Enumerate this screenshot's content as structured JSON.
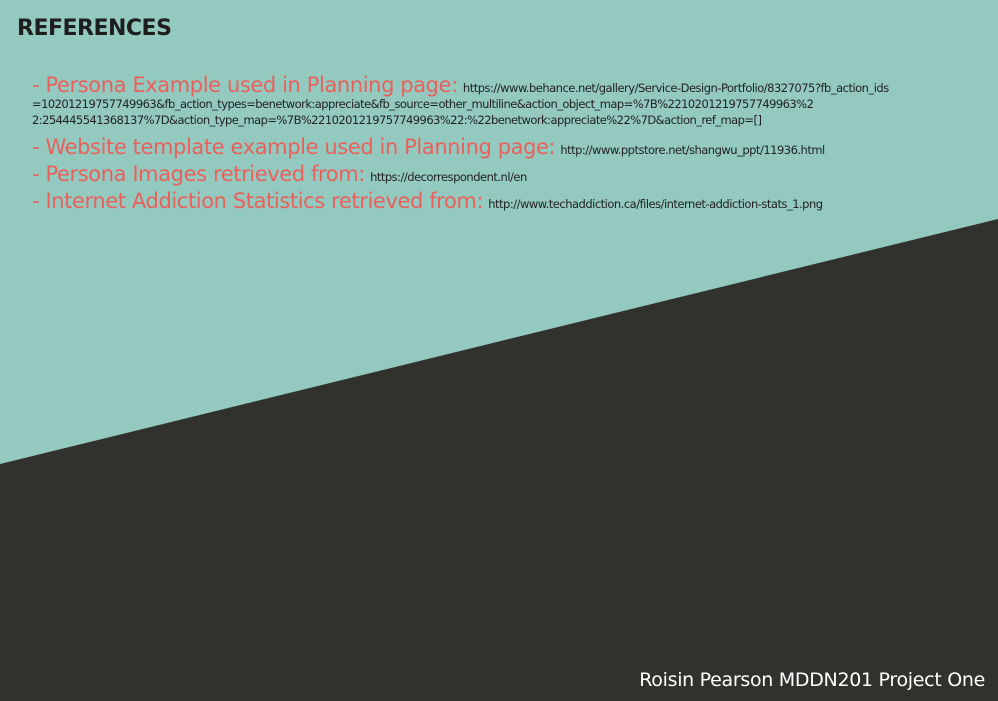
{
  "slide": {
    "title": "REFERENCES",
    "references": [
      {
        "label": "- Persona Example used in Planning page:",
        "url_lines": [
          "https://www.behance.net/gallery/Service-Design-Portfolio/8327075?fb_action_ids",
          "=10201219757749963&fb_action_types=benetwork:appreciate&fb_source=other_multiline&action_object_map=%7B%2210201219757749963%2",
          "2:254445541368137%7D&action_type_map=%7B%2210201219757749963%22:%22benetwork:appreciate%22%7D&action_ref_map=[]"
        ]
      },
      {
        "label": "- Website template example used in Planning page:",
        "url": "http://www.pptstore.net/shangwu_ppt/11936.html"
      },
      {
        "label": "- Persona Images retrieved from:",
        "url": "https://decorrespondent.nl/en"
      },
      {
        "label": "- Internet Addiction Statistics retrieved from:",
        "url": "http://www.techaddiction.ca/files/internet-addiction-stats_1.png"
      }
    ],
    "footer": "Roisin Pearson MDDN201 Project One"
  },
  "colors": {
    "background": "#93c9bf",
    "dark_band": "#31312d",
    "label": "#e8615c",
    "url_text": "#222222",
    "footer_text": "#ffffff"
  }
}
